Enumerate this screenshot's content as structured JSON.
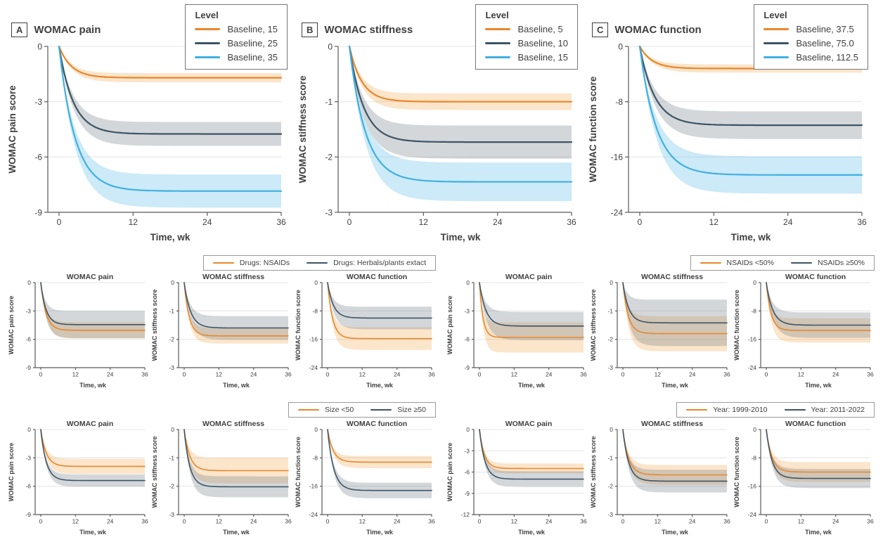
{
  "figure": {
    "legend_header": "Level",
    "panels": [
      {
        "letter": "A",
        "title": "WOMAC pain",
        "legend_items": [
          "Baseline, 15",
          "Baseline, 25",
          "Baseline, 35"
        ]
      },
      {
        "letter": "B",
        "title": "WOMAC stiffness",
        "legend_items": [
          "Baseline, 5",
          "Baseline, 10",
          "Baseline, 15"
        ]
      },
      {
        "letter": "C",
        "title": "WOMAC function",
        "legend_items": [
          "Baseline, 37.5",
          "Baseline, 75.0",
          "Baseline, 112.5"
        ]
      }
    ],
    "group_legends": [
      {
        "items": [
          {
            "label": "Drugs: NSAIDs",
            "color": "orange"
          },
          {
            "label": "Drugs: Herbals/plants extact",
            "color": "dark"
          }
        ]
      },
      {
        "items": [
          {
            "label": "NSAIDs <50%",
            "color": "orange"
          },
          {
            "label": "NSAIDs ≥50%",
            "color": "dark"
          }
        ]
      },
      {
        "items": [
          {
            "label": "Size <50",
            "color": "orange"
          },
          {
            "label": "Size ≥50",
            "color": "dark"
          }
        ]
      },
      {
        "items": [
          {
            "label": "Year: 1999-2010",
            "color": "orange"
          },
          {
            "label": "Year: 2011-2022",
            "color": "dark"
          }
        ]
      }
    ]
  },
  "colors": {
    "orange": "#E8872B",
    "dark": "#3D5565",
    "blue": "#41B0E2",
    "grid": "#E4E4E4",
    "axis": "#58595B",
    "text": "#3F3F3F"
  },
  "band_colors": {
    "orange": "rgba(240,160,70,0.28)",
    "dark": "rgba(120,132,140,0.32)",
    "blue": "rgba(110,195,235,0.35)"
  },
  "chart_data": [
    {
      "type": "line",
      "title": "",
      "ylabel": "WOMAC pain score",
      "xlabel": "Time, wk",
      "xticks": [
        0,
        12,
        24,
        36
      ],
      "xlim": [
        0,
        36
      ],
      "ylim": [
        -9,
        0
      ],
      "yticks": [
        0,
        -3,
        -6,
        -9
      ],
      "grid": true,
      "series": [
        {
          "name": "Baseline, 15",
          "color": "orange",
          "plateau": -1.7,
          "tau": 2.0,
          "band": 0.25
        },
        {
          "name": "Baseline, 25",
          "color": "dark",
          "plateau": -4.75,
          "tau": 2.3,
          "band": 0.65
        },
        {
          "name": "Baseline, 35",
          "color": "blue",
          "plateau": -7.85,
          "tau": 2.6,
          "band": 0.9
        }
      ]
    },
    {
      "type": "line",
      "title": "",
      "ylabel": "WOMAC stiffness score",
      "xlabel": "Time, wk",
      "xticks": [
        0,
        12,
        24,
        36
      ],
      "xlim": [
        0,
        36
      ],
      "ylim": [
        -3,
        0
      ],
      "yticks": [
        0,
        -1,
        -2,
        -3
      ],
      "grid": true,
      "series": [
        {
          "name": "Baseline, 5",
          "color": "orange",
          "plateau": -1.0,
          "tau": 2.0,
          "band": 0.15
        },
        {
          "name": "Baseline, 10",
          "color": "dark",
          "plateau": -1.73,
          "tau": 2.3,
          "band": 0.3
        },
        {
          "name": "Baseline, 15",
          "color": "blue",
          "plateau": -2.45,
          "tau": 2.6,
          "band": 0.35
        }
      ]
    },
    {
      "type": "line",
      "title": "",
      "ylabel": "WOMAC function score",
      "xlabel": "Time, wk",
      "xticks": [
        0,
        12,
        24,
        36
      ],
      "xlim": [
        0,
        36
      ],
      "ylim": [
        -24,
        0
      ],
      "yticks": [
        0,
        -8,
        -16,
        -24
      ],
      "grid": true,
      "series": [
        {
          "name": "Baseline, 37.5",
          "color": "orange",
          "plateau": -3.2,
          "tau": 2.0,
          "band": 0.6
        },
        {
          "name": "Baseline, 75.0",
          "color": "dark",
          "plateau": -11.4,
          "tau": 2.4,
          "band": 2.0
        },
        {
          "name": "Baseline, 112.5",
          "color": "blue",
          "plateau": -18.6,
          "tau": 2.7,
          "band": 2.7
        }
      ]
    },
    {
      "type": "line",
      "title": "WOMAC pain",
      "ylabel": "WOMAC pain score",
      "xlabel": "Time, wk",
      "xticks": [
        0,
        12,
        24,
        36
      ],
      "xlim": [
        0,
        36
      ],
      "ylim": [
        -9,
        0
      ],
      "yticks": [
        0,
        -3,
        -6,
        -9
      ],
      "grid": true,
      "series": [
        {
          "name": "Drugs: NSAIDs",
          "color": "orange",
          "plateau": -5.05,
          "tau": 1.8,
          "band": 0.85
        },
        {
          "name": "Drugs: Herbals/plants extact",
          "color": "dark",
          "plateau": -4.45,
          "tau": 1.8,
          "band": 1.45
        }
      ]
    },
    {
      "type": "line",
      "title": "WOMAC stiffness",
      "ylabel": "WOMAC stiffness score",
      "xlabel": "Time, wk",
      "xticks": [
        0,
        12,
        24,
        36
      ],
      "xlim": [
        0,
        36
      ],
      "ylim": [
        -3,
        0
      ],
      "yticks": [
        0,
        -1,
        -2,
        -3
      ],
      "grid": true,
      "series": [
        {
          "name": "Drugs: NSAIDs",
          "color": "orange",
          "plateau": -1.88,
          "tau": 1.7,
          "band": 0.27
        },
        {
          "name": "Drugs: Herbals/plants extact",
          "color": "dark",
          "plateau": -1.6,
          "tau": 2.2,
          "band": 0.42
        }
      ]
    },
    {
      "type": "line",
      "title": "WOMAC function",
      "ylabel": "WOMAC function score",
      "xlabel": "Time, wk",
      "xticks": [
        0,
        12,
        24,
        36
      ],
      "xlim": [
        0,
        36
      ],
      "ylim": [
        -24,
        0
      ],
      "yticks": [
        0,
        -8,
        -16,
        -24
      ],
      "grid": true,
      "series": [
        {
          "name": "Drugs: NSAIDs",
          "color": "orange",
          "plateau": -15.8,
          "tau": 1.7,
          "band": 3.2
        },
        {
          "name": "Drugs: Herbals/plants extact",
          "color": "dark",
          "plateau": -10.0,
          "tau": 2.0,
          "band": 3.2
        }
      ]
    },
    {
      "type": "line",
      "title": "WOMAC pain",
      "ylabel": "WOMAC pain score",
      "xlabel": "Time, wk",
      "xticks": [
        0,
        12,
        24,
        36
      ],
      "xlim": [
        0,
        36
      ],
      "ylim": [
        -9,
        0
      ],
      "yticks": [
        0,
        -3,
        -6,
        -9
      ],
      "grid": true,
      "series": [
        {
          "name": "NSAIDs <50%",
          "color": "orange",
          "plateau": -5.8,
          "tau": 1.2,
          "band": 1.6
        },
        {
          "name": "NSAIDs ≥50%",
          "color": "dark",
          "plateau": -4.6,
          "tau": 2.2,
          "band": 1.5
        }
      ]
    },
    {
      "type": "line",
      "title": "WOMAC stiffness",
      "ylabel": "WOMAC stiffness score",
      "xlabel": "Time, wk",
      "xticks": [
        0,
        12,
        24,
        36
      ],
      "xlim": [
        0,
        36
      ],
      "ylim": [
        -3,
        0
      ],
      "yticks": [
        0,
        -1,
        -2,
        -3
      ],
      "grid": true,
      "series": [
        {
          "name": "NSAIDs <50%",
          "color": "orange",
          "plateau": -1.8,
          "tau": 1.8,
          "band": 0.62
        },
        {
          "name": "NSAIDs ≥50%",
          "color": "dark",
          "plateau": -1.42,
          "tau": 2.0,
          "band": 0.82
        }
      ]
    },
    {
      "type": "line",
      "title": "WOMAC function",
      "ylabel": "WOMAC function score",
      "xlabel": "Time, wk",
      "xticks": [
        0,
        12,
        24,
        36
      ],
      "xlim": [
        0,
        36
      ],
      "ylim": [
        -24,
        0
      ],
      "yticks": [
        0,
        -8,
        -16,
        -24
      ],
      "grid": true,
      "series": [
        {
          "name": "NSAIDs <50%",
          "color": "orange",
          "plateau": -13.5,
          "tau": 1.6,
          "band": 3.4
        },
        {
          "name": "NSAIDs ≥50%",
          "color": "dark",
          "plateau": -12.0,
          "tau": 2.2,
          "band": 3.6
        }
      ]
    },
    {
      "type": "line",
      "title": "WOMAC pain",
      "ylabel": "WOMAC pain score",
      "xlabel": "Time, wk",
      "xticks": [
        0,
        12,
        24,
        36
      ],
      "xlim": [
        0,
        36
      ],
      "ylim": [
        -9,
        0
      ],
      "yticks": [
        0,
        -3,
        -6,
        -9
      ],
      "grid": true,
      "series": [
        {
          "name": "Size <50",
          "color": "orange",
          "plateau": -3.9,
          "tau": 1.9,
          "band": 0.8
        },
        {
          "name": "Size ≥50",
          "color": "dark",
          "plateau": -5.4,
          "tau": 1.9,
          "band": 0.65
        }
      ]
    },
    {
      "type": "line",
      "title": "WOMAC stiffness",
      "ylabel": "WOMAC stiffness score",
      "xlabel": "Time, wk",
      "xticks": [
        0,
        12,
        24,
        36
      ],
      "xlim": [
        0,
        36
      ],
      "ylim": [
        -3,
        0
      ],
      "yticks": [
        0,
        -1,
        -2,
        -3
      ],
      "grid": true,
      "series": [
        {
          "name": "Size <50",
          "color": "orange",
          "plateau": -1.45,
          "tau": 1.9,
          "band": 0.45
        },
        {
          "name": "Size ≥50",
          "color": "dark",
          "plateau": -2.02,
          "tau": 1.9,
          "band": 0.37
        }
      ]
    },
    {
      "type": "line",
      "title": "WOMAC function",
      "ylabel": "WOMAC function score",
      "xlabel": "Time, wk",
      "xticks": [
        0,
        12,
        24,
        36
      ],
      "xlim": [
        0,
        36
      ],
      "ylim": [
        -24,
        0
      ],
      "yticks": [
        0,
        -8,
        -16,
        -24
      ],
      "grid": true,
      "series": [
        {
          "name": "Size <50",
          "color": "orange",
          "plateau": -9.2,
          "tau": 1.9,
          "band": 1.7
        },
        {
          "name": "Size ≥50",
          "color": "dark",
          "plateau": -17.2,
          "tau": 2.1,
          "band": 2.2
        }
      ]
    },
    {
      "type": "line",
      "title": "WOMAC pain",
      "ylabel": "WOMAC pain score",
      "xlabel": "Time, wk",
      "xticks": [
        0,
        12,
        24,
        36
      ],
      "xlim": [
        0,
        36
      ],
      "ylim": [
        -12,
        0
      ],
      "yticks": [
        0,
        -3,
        -6,
        -9,
        -12
      ],
      "grid": true,
      "series": [
        {
          "name": "Year: 1999-2010",
          "color": "orange",
          "plateau": -5.5,
          "tau": 1.7,
          "band": 0.7
        },
        {
          "name": "Year: 2011-2022",
          "color": "dark",
          "plateau": -7.0,
          "tau": 1.9,
          "band": 1.1
        }
      ]
    },
    {
      "type": "line",
      "title": "WOMAC stiffness",
      "ylabel": "WOMAC stiffness score",
      "xlabel": "Time, wk",
      "xticks": [
        0,
        12,
        24,
        36
      ],
      "xlim": [
        0,
        36
      ],
      "ylim": [
        -3,
        0
      ],
      "yticks": [
        0,
        -1,
        -2,
        -3
      ],
      "grid": true,
      "series": [
        {
          "name": "Year: 1999-2010",
          "color": "orange",
          "plateau": -1.6,
          "tau": 2.0,
          "band": 0.35
        },
        {
          "name": "Year: 2011-2022",
          "color": "dark",
          "plateau": -1.82,
          "tau": 2.0,
          "band": 0.4
        }
      ]
    },
    {
      "type": "line",
      "title": "WOMAC function",
      "ylabel": "WOMAC function score",
      "xlabel": "Time, wk",
      "xticks": [
        0,
        12,
        24,
        36
      ],
      "xlim": [
        0,
        36
      ],
      "ylim": [
        -24,
        0
      ],
      "yticks": [
        0,
        -8,
        -16,
        -24
      ],
      "grid": true,
      "series": [
        {
          "name": "Year: 1999-2010",
          "color": "orange",
          "plateau": -12.0,
          "tau": 1.9,
          "band": 2.8
        },
        {
          "name": "Year: 2011-2022",
          "color": "dark",
          "plateau": -13.8,
          "tau": 2.0,
          "band": 2.7
        }
      ]
    }
  ]
}
